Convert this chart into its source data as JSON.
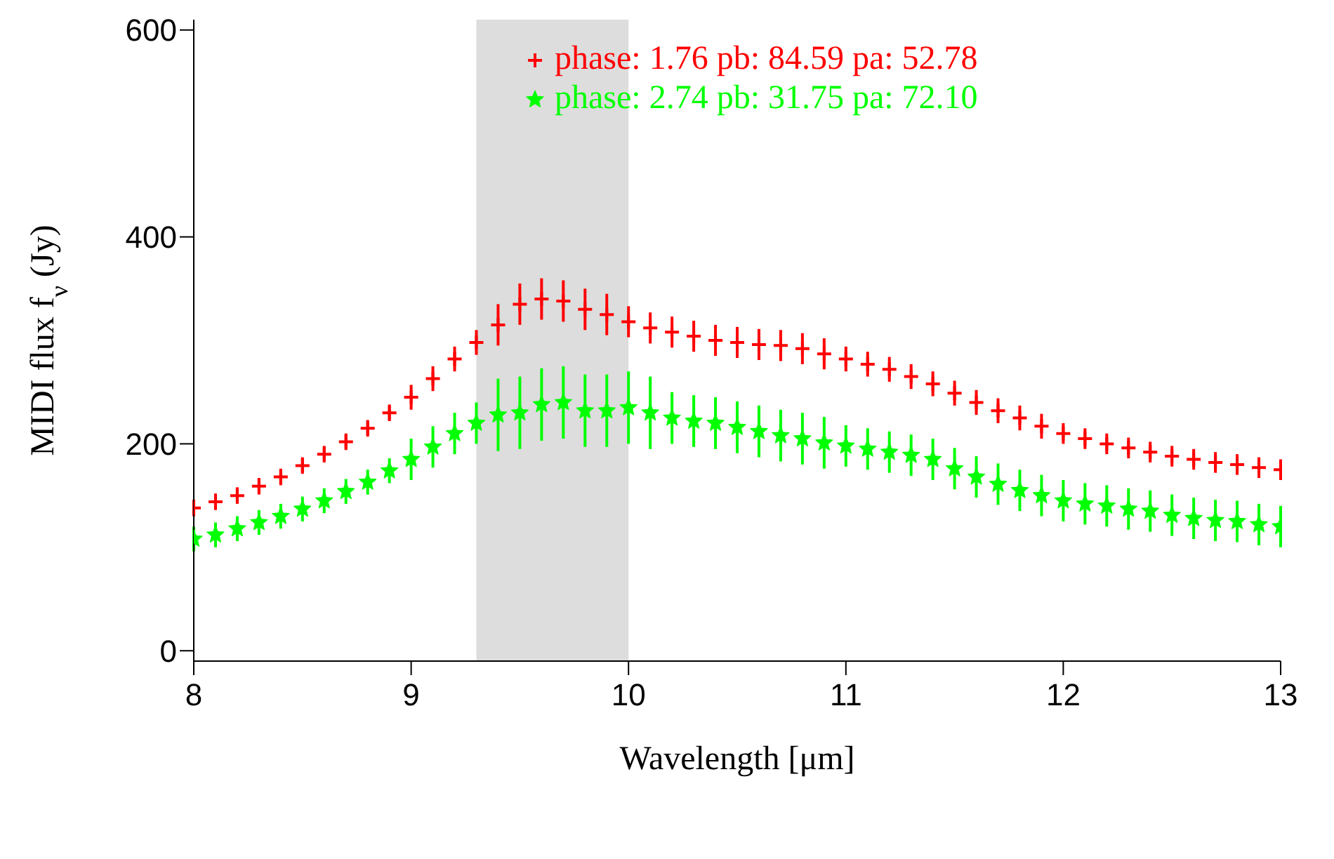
{
  "chart_data": {
    "type": "scatter",
    "xlabel": "Wavelength [μm]",
    "ylabel": "MIDI flux f$_{ν}$ (Jy)",
    "xlim": [
      8,
      13
    ],
    "xticks": [
      8,
      9,
      10,
      11,
      12,
      13
    ],
    "ylim": [
      -10,
      610
    ],
    "yticks": [
      0,
      200,
      400,
      600
    ],
    "grid": false,
    "legend": "top right",
    "bands": [
      {
        "axis": "x",
        "from": 9.3,
        "to": 10.0,
        "color": "#dddddd"
      }
    ],
    "series": [
      {
        "name": "phase: 1.76 pb: 84.59 pa: 52.78",
        "color": "#ff0000",
        "marker": "cross",
        "x": [
          8.0,
          8.1,
          8.2,
          8.3,
          8.4,
          8.5,
          8.6,
          8.7,
          8.8,
          8.9,
          9.0,
          9.1,
          9.2,
          9.3,
          9.4,
          9.5,
          9.6,
          9.7,
          9.8,
          9.9,
          10.0,
          10.1,
          10.2,
          10.3,
          10.4,
          10.5,
          10.6,
          10.7,
          10.8,
          10.9,
          11.0,
          11.1,
          11.2,
          11.3,
          11.4,
          11.5,
          11.6,
          11.7,
          11.8,
          11.9,
          12.0,
          12.1,
          12.2,
          12.3,
          12.4,
          12.5,
          12.6,
          12.7,
          12.8,
          12.9,
          13.0
        ],
        "values": [
          138,
          144,
          150,
          159,
          168,
          179,
          190,
          202,
          215,
          230,
          245,
          263,
          282,
          298,
          315,
          335,
          340,
          338,
          330,
          325,
          318,
          312,
          308,
          304,
          300,
          298,
          296,
          295,
          292,
          287,
          282,
          277,
          272,
          265,
          258,
          249,
          240,
          232,
          225,
          217,
          210,
          205,
          200,
          196,
          192,
          188,
          185,
          182,
          180,
          177,
          175
        ],
        "errors": [
          8,
          8,
          8,
          8,
          8,
          8,
          8,
          8,
          8,
          8,
          12,
          12,
          12,
          12,
          20,
          20,
          20,
          20,
          20,
          20,
          15,
          15,
          15,
          15,
          15,
          15,
          15,
          15,
          15,
          15,
          12,
          12,
          12,
          12,
          12,
          12,
          12,
          12,
          12,
          12,
          10,
          10,
          10,
          10,
          10,
          10,
          10,
          10,
          10,
          10,
          10
        ]
      },
      {
        "name": "phase: 2.74 pb: 31.75 pa: 72.10",
        "color": "#00ff00",
        "marker": "star",
        "x": [
          8.0,
          8.1,
          8.2,
          8.3,
          8.4,
          8.5,
          8.6,
          8.7,
          8.8,
          8.9,
          9.0,
          9.1,
          9.2,
          9.3,
          9.4,
          9.5,
          9.6,
          9.7,
          9.8,
          9.9,
          10.0,
          10.1,
          10.2,
          10.3,
          10.4,
          10.5,
          10.6,
          10.7,
          10.8,
          10.9,
          11.0,
          11.1,
          11.2,
          11.3,
          11.4,
          11.5,
          11.6,
          11.7,
          11.8,
          11.9,
          12.0,
          12.1,
          12.2,
          12.3,
          12.4,
          12.5,
          12.6,
          12.7,
          12.8,
          12.9,
          13.0
        ],
        "values": [
          108,
          112,
          118,
          124,
          130,
          137,
          145,
          154,
          163,
          174,
          185,
          197,
          210,
          220,
          228,
          230,
          238,
          240,
          232,
          232,
          235,
          230,
          225,
          222,
          220,
          216,
          212,
          208,
          205,
          201,
          198,
          195,
          192,
          189,
          185,
          176,
          168,
          161,
          155,
          150,
          145,
          142,
          140,
          137,
          135,
          131,
          128,
          126,
          125,
          122,
          120
        ],
        "errors": [
          12,
          12,
          12,
          12,
          12,
          12,
          12,
          12,
          12,
          12,
          20,
          20,
          20,
          20,
          35,
          35,
          35,
          35,
          35,
          35,
          35,
          35,
          25,
          25,
          25,
          25,
          25,
          25,
          25,
          25,
          20,
          20,
          20,
          20,
          20,
          20,
          20,
          20,
          20,
          20,
          20,
          20,
          20,
          20,
          20,
          20,
          20,
          20,
          20,
          20,
          20
        ]
      }
    ]
  }
}
